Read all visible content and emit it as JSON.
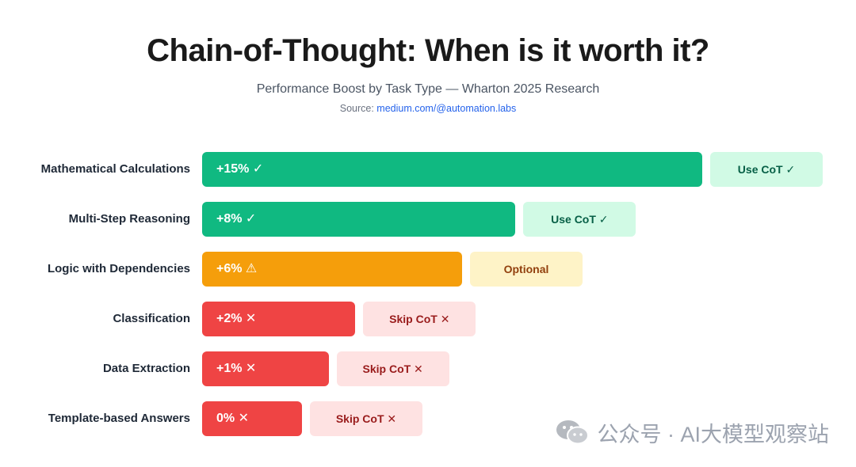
{
  "header": {
    "title": "Chain-of-Thought: When is it worth it?",
    "subtitle": "Performance Boost by Task Type — Wharton 2025 Research",
    "source_prefix": "Source: ",
    "source_link": "medium.com/@automation.labs"
  },
  "colors": {
    "use": {
      "bar": "#10b981",
      "pill_bg": "#d1fae5",
      "pill_text": "#065f46"
    },
    "optional": {
      "bar": "#f59e0b",
      "pill_bg": "#fef3c7",
      "pill_text": "#92400e"
    },
    "skip": {
      "bar": "#ef4444",
      "pill_bg": "#fee2e2",
      "pill_text": "#991b1b"
    }
  },
  "chart_data": {
    "type": "bar",
    "orientation": "horizontal",
    "title": "Chain-of-Thought: When is it worth it?",
    "subtitle": "Performance Boost by Task Type — Wharton 2025 Research",
    "xlabel": "",
    "ylabel": "",
    "xlim": [
      0,
      15
    ],
    "unit": "%",
    "categories": [
      "Mathematical Calculations",
      "Multi-Step Reasoning",
      "Logic with Dependencies",
      "Classification",
      "Data Extraction",
      "Template-based Answers"
    ],
    "values": [
      15,
      8,
      6,
      2,
      1,
      0
    ],
    "data_labels": [
      "+15% ✓",
      "+8% ✓",
      "+6% ⚠",
      "+2% ✕",
      "+1% ✕",
      "0% ✕"
    ],
    "recommendations": [
      "Use CoT ✓",
      "Use CoT ✓",
      "Optional",
      "Skip CoT ✕",
      "Skip CoT ✕",
      "Skip CoT ✕"
    ],
    "status": [
      "use",
      "use",
      "optional",
      "skip",
      "skip",
      "skip"
    ]
  },
  "watermark": {
    "text": "公众号 · AI大模型观察站",
    "icon": "wechat-icon"
  }
}
